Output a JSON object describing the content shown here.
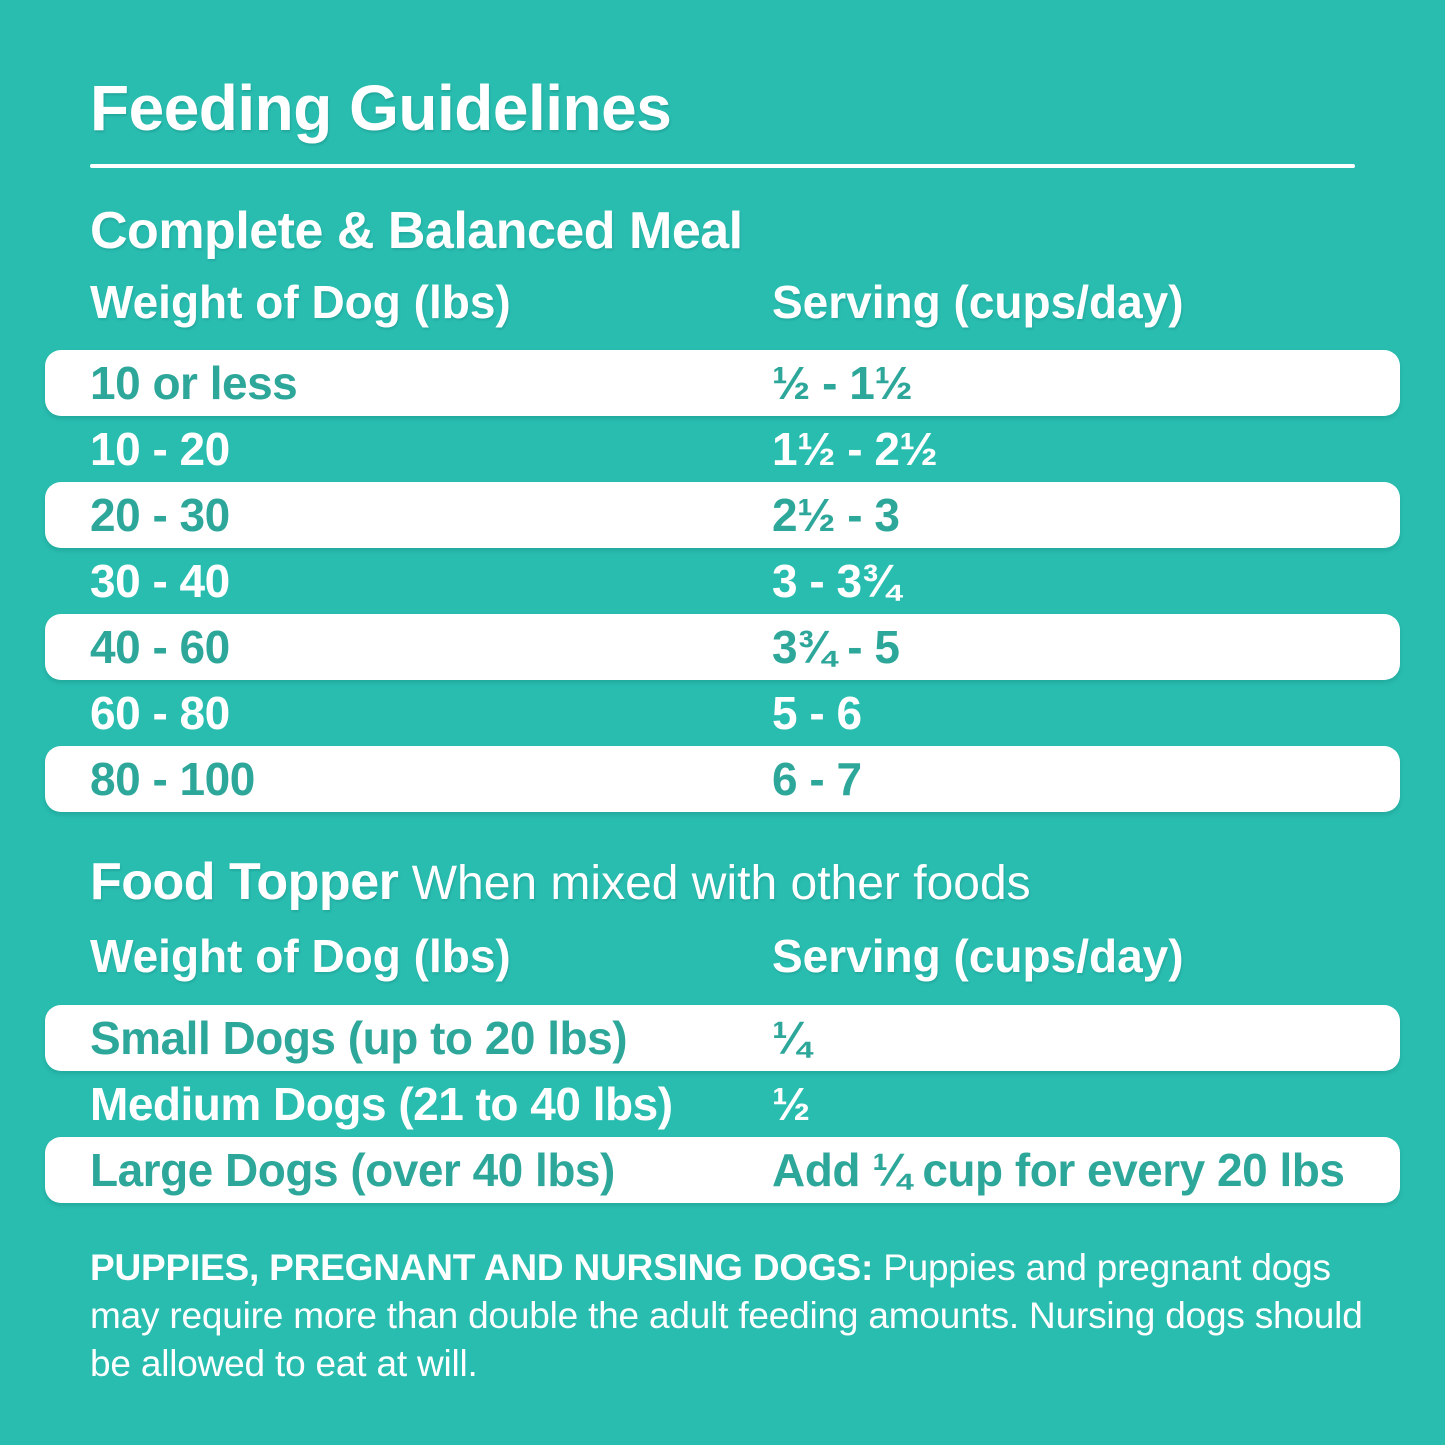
{
  "page": {
    "title": "Feeding Guidelines",
    "colors": {
      "background": "#29BDB0",
      "row_background": "#FFFFFF",
      "row_text_teal": "#2EA79B",
      "text_white": "#FFFFFF"
    }
  },
  "meal_section": {
    "heading": "Complete & Balanced Meal",
    "col1_header": "Weight of Dog (lbs)",
    "col2_header": "Serving (cups/day)",
    "rows": [
      {
        "weight": "10 or less",
        "serving": "½ - 1½"
      },
      {
        "weight": "10 - 20",
        "serving": "1½ - 2½"
      },
      {
        "weight": "20 - 30",
        "serving": "2½ - 3"
      },
      {
        "weight": "30 - 40",
        "serving": "3 - 3¾"
      },
      {
        "weight": "40 - 60",
        "serving": "3¾ - 5"
      },
      {
        "weight": "60 - 80",
        "serving": "5 - 6"
      },
      {
        "weight": "80 - 100",
        "serving": "6 - 7"
      }
    ]
  },
  "topper_section": {
    "heading": "Food Topper",
    "subheading": " When mixed with other foods",
    "col1_header": "Weight of Dog (lbs)",
    "col2_header": "Serving (cups/day)",
    "rows": [
      {
        "weight": "Small Dogs (up to 20 lbs)",
        "serving": "¼"
      },
      {
        "weight": "Medium Dogs (21 to 40 lbs)",
        "serving": "½"
      },
      {
        "weight": "Large Dogs (over 40 lbs)",
        "serving": "Add ¼ cup for every 20 lbs"
      }
    ]
  },
  "footnote": {
    "bold": "PUPPIES, PREGNANT AND NURSING DOGS:",
    "text": " Puppies and pregnant dogs may require more than double the adult feeding amounts. Nursing dogs should be allowed to eat at will."
  }
}
